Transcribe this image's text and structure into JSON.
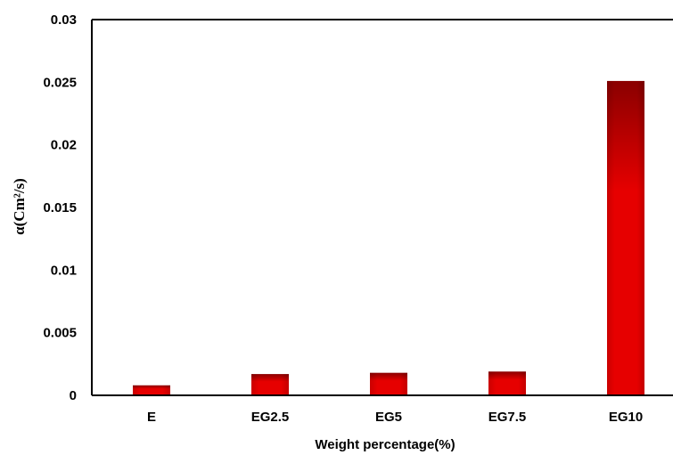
{
  "chart_data": {
    "type": "bar",
    "categories": [
      "E",
      "EG2.5",
      "EG5",
      "EG7.5",
      "EG10"
    ],
    "values": [
      0.0008,
      0.0017,
      0.0018,
      0.0019,
      0.0251
    ],
    "title": "",
    "xlabel": "Weight percentage(%)",
    "ylabel": "α(Cm²/s)",
    "ylim": [
      0,
      0.03
    ],
    "yticks": [
      "0",
      "0.005",
      "0.01",
      "0.015",
      "0.02",
      "0.025",
      "0.03"
    ],
    "grid": false,
    "legend": "none",
    "bar_color": "#e00000",
    "bar_shadow_color": "#7a0000"
  }
}
